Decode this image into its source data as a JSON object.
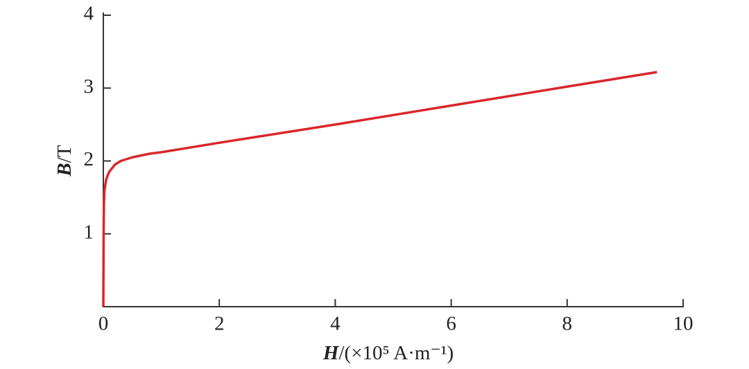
{
  "chart_data": {
    "type": "line",
    "x_label": {
      "symbol": "H",
      "unit": "/(×10⁵ A·m⁻¹)"
    },
    "y_label": {
      "symbol": "B",
      "unit": "/T"
    },
    "x": [
      0,
      0.005,
      0.01,
      0.02,
      0.05,
      0.1,
      0.2,
      0.3,
      0.5,
      0.8,
      1,
      2,
      4,
      6,
      8,
      9.55
    ],
    "series": [
      {
        "name": "B-H",
        "color": "#d9262b",
        "values": [
          0,
          1.0,
          1.4,
          1.6,
          1.75,
          1.85,
          1.95,
          2.0,
          2.05,
          2.1,
          2.12,
          2.25,
          2.5,
          2.76,
          3.02,
          3.22
        ]
      }
    ],
    "xlim": [
      0,
      10
    ],
    "xticks": [
      0,
      2,
      4,
      6,
      8,
      10
    ],
    "ylim": [
      0,
      4
    ],
    "yticks": [
      1,
      2,
      3,
      4
    ]
  }
}
